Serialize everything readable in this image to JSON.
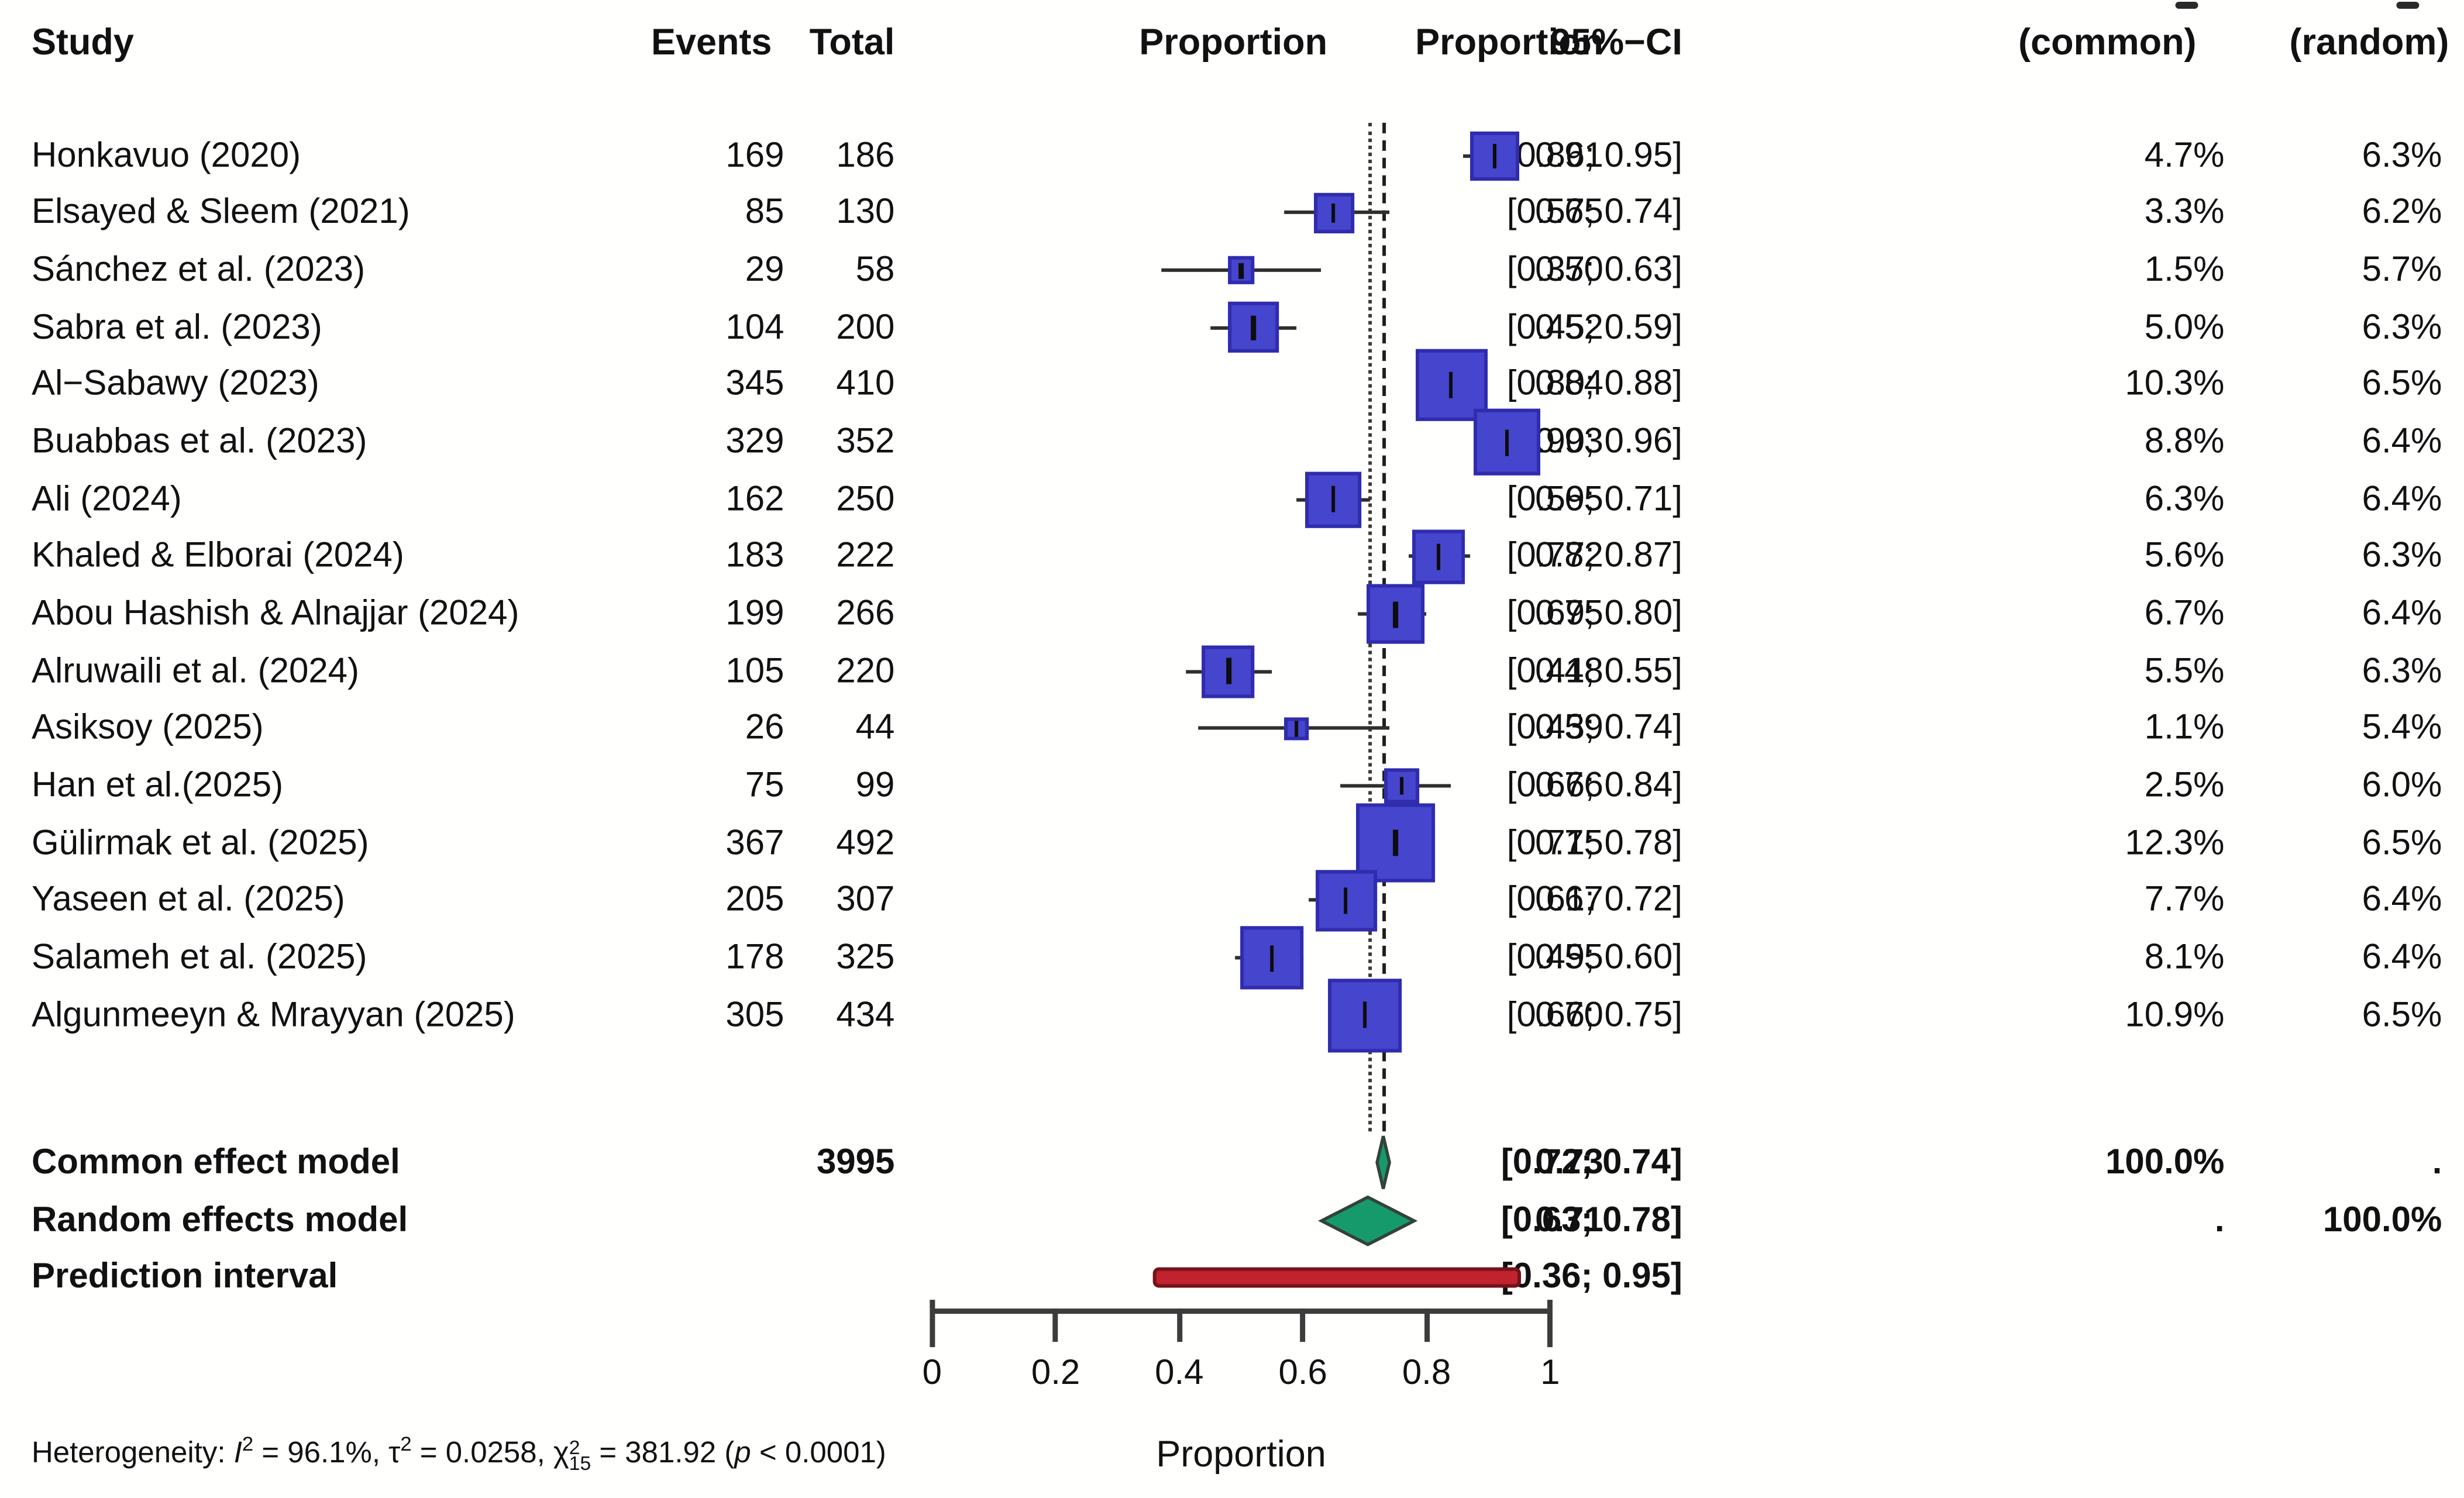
{
  "header": {
    "study": "Study",
    "events": "Events",
    "total": "Total",
    "plot_title": "Proportion",
    "proportion": "Proportion",
    "ci": "95%−CI",
    "weight_common": "(common)",
    "weight_random": "(random)"
  },
  "chart_data": {
    "type": "forest",
    "xlabel": "Proportion",
    "xlim": [
      0,
      1
    ],
    "x_ticks": [
      0,
      0.2,
      0.4,
      0.6,
      0.8,
      1
    ],
    "x_tick_labels": [
      "0",
      "0.2",
      "0.4",
      "0.6",
      "0.8",
      "1"
    ],
    "grid": false,
    "reference_lines": {
      "random_dotted": 0.71,
      "common_dashed": 0.73
    },
    "studies": [
      {
        "name": "Honkavuo (2020)",
        "events": "169",
        "total": "186",
        "est": 0.91,
        "lower": 0.86,
        "upper": 0.95,
        "proportion": "0.91",
        "ci": "[0.86; 0.95]",
        "w_common": "4.7%",
        "w_random": "6.3%",
        "w_common_val": 4.7
      },
      {
        "name": "Elsayed & Sleem (2021)",
        "events": "85",
        "total": "130",
        "est": 0.65,
        "lower": 0.57,
        "upper": 0.74,
        "proportion": "0.65",
        "ci": "[0.57; 0.74]",
        "w_common": "3.3%",
        "w_random": "6.2%",
        "w_common_val": 3.3
      },
      {
        "name": "Sánchez et al. (2023)",
        "events": "29",
        "total": "58",
        "est": 0.5,
        "lower": 0.37,
        "upper": 0.63,
        "proportion": "0.50",
        "ci": "[0.37; 0.63]",
        "w_common": "1.5%",
        "w_random": "5.7%",
        "w_common_val": 1.5
      },
      {
        "name": "Sabra et al. (2023)",
        "events": "104",
        "total": "200",
        "est": 0.52,
        "lower": 0.45,
        "upper": 0.59,
        "proportion": "0.52",
        "ci": "[0.45; 0.59]",
        "w_common": "5.0%",
        "w_random": "6.3%",
        "w_common_val": 5.0
      },
      {
        "name": "Al−Sabawy (2023)",
        "events": "345",
        "total": "410",
        "est": 0.84,
        "lower": 0.8,
        "upper": 0.88,
        "proportion": "0.84",
        "ci": "[0.80; 0.88]",
        "w_common": "10.3%",
        "w_random": "6.5%",
        "w_common_val": 10.3
      },
      {
        "name": "Buabbas et al. (2023)",
        "events": "329",
        "total": "352",
        "est": 0.93,
        "lower": 0.9,
        "upper": 0.96,
        "proportion": "0.93",
        "ci": "[0.90; 0.96]",
        "w_common": "8.8%",
        "w_random": "6.4%",
        "w_common_val": 8.8
      },
      {
        "name": "Ali (2024)",
        "events": "162",
        "total": "250",
        "est": 0.65,
        "lower": 0.59,
        "upper": 0.71,
        "proportion": "0.65",
        "ci": "[0.59; 0.71]",
        "w_common": "6.3%",
        "w_random": "6.4%",
        "w_common_val": 6.3
      },
      {
        "name": "Khaled & Elborai (2024)",
        "events": "183",
        "total": "222",
        "est": 0.82,
        "lower": 0.77,
        "upper": 0.87,
        "proportion": "0.82",
        "ci": "[0.77; 0.87]",
        "w_common": "5.6%",
        "w_random": "6.3%",
        "w_common_val": 5.6
      },
      {
        "name": "Abou Hashish & Alnajjar (2024)",
        "events": "199",
        "total": "266",
        "est": 0.75,
        "lower": 0.69,
        "upper": 0.8,
        "proportion": "0.75",
        "ci": "[0.69; 0.80]",
        "w_common": "6.7%",
        "w_random": "6.4%",
        "w_common_val": 6.7
      },
      {
        "name": "Alruwaili et al. (2024)",
        "events": "105",
        "total": "220",
        "est": 0.48,
        "lower": 0.41,
        "upper": 0.55,
        "proportion": "0.48",
        "ci": "[0.41; 0.55]",
        "w_common": "5.5%",
        "w_random": "6.3%",
        "w_common_val": 5.5
      },
      {
        "name": "Asiksoy (2025)",
        "events": "26",
        "total": "44",
        "est": 0.59,
        "lower": 0.43,
        "upper": 0.74,
        "proportion": "0.59",
        "ci": "[0.43; 0.74]",
        "w_common": "1.1%",
        "w_random": "5.4%",
        "w_common_val": 1.1
      },
      {
        "name": "Han et al.(2025)",
        "events": "75",
        "total": "99",
        "est": 0.76,
        "lower": 0.66,
        "upper": 0.84,
        "proportion": "0.76",
        "ci": "[0.66; 0.84]",
        "w_common": "2.5%",
        "w_random": "6.0%",
        "w_common_val": 2.5
      },
      {
        "name": "Gülirmak et al. (2025)",
        "events": "367",
        "total": "492",
        "est": 0.75,
        "lower": 0.71,
        "upper": 0.78,
        "proportion": "0.75",
        "ci": "[0.71; 0.78]",
        "w_common": "12.3%",
        "w_random": "6.5%",
        "w_common_val": 12.3
      },
      {
        "name": "Yaseen et al. (2025)",
        "events": "205",
        "total": "307",
        "est": 0.67,
        "lower": 0.61,
        "upper": 0.72,
        "proportion": "0.67",
        "ci": "[0.61; 0.72]",
        "w_common": "7.7%",
        "w_random": "6.4%",
        "w_common_val": 7.7
      },
      {
        "name": "Salameh et al. (2025)",
        "events": "178",
        "total": "325",
        "est": 0.55,
        "lower": 0.49,
        "upper": 0.6,
        "proportion": "0.55",
        "ci": "[0.49; 0.60]",
        "w_common": "8.1%",
        "w_random": "6.4%",
        "w_common_val": 8.1
      },
      {
        "name": "Algunmeeyn & Mrayyan (2025)",
        "events": "305",
        "total": "434",
        "est": 0.7,
        "lower": 0.66,
        "upper": 0.75,
        "proportion": "0.70",
        "ci": "[0.66; 0.75]",
        "w_common": "10.9%",
        "w_random": "6.5%",
        "w_common_val": 10.9
      }
    ],
    "summary": [
      {
        "name": "Common effect model",
        "total": "3995",
        "est": 0.73,
        "lower": 0.72,
        "upper": 0.74,
        "proportion": "0.73",
        "ci": "[0.72; 0.74]",
        "w_common": "100.0%",
        "w_random": ".",
        "shape": "diamond"
      },
      {
        "name": "Random effects model",
        "est": 0.71,
        "lower": 0.63,
        "upper": 0.78,
        "proportion": "0.71",
        "ci": "[0.63; 0.78]",
        "w_common": ".",
        "w_random": "100.0%",
        "shape": "diamond"
      },
      {
        "name": "Prediction interval",
        "lower": 0.36,
        "upper": 0.95,
        "ci": "[0.36; 0.95]",
        "shape": "bar"
      }
    ],
    "heterogeneity_segments": [
      {
        "style": "plain",
        "text": "Heterogeneity: "
      },
      {
        "style": "italic",
        "text": "I"
      },
      {
        "style": "sup",
        "text": "2"
      },
      {
        "style": "plain",
        "text": " = 96.1%, τ"
      },
      {
        "style": "sup",
        "text": "2"
      },
      {
        "style": "plain",
        "text": " = 0.0258, χ"
      },
      {
        "style": "stack",
        "sup": "2",
        "sub": "15"
      },
      {
        "style": "plain",
        "text": " = 381.92 ("
      },
      {
        "style": "italic",
        "text": "p"
      },
      {
        "style": "plain",
        "text": " < 0.0001)"
      }
    ]
  },
  "colors": {
    "square_fill": "#4645cd",
    "square_border": "#2f2cae",
    "ci_line": "#2e2e2e",
    "diamond_fill": "#169a6b",
    "diamond_border": "#33423b",
    "prediction_bar_fill": "#c0232d",
    "prediction_bar_border": "#74121a",
    "axis": "#3c3c3c",
    "text": "#111111"
  }
}
